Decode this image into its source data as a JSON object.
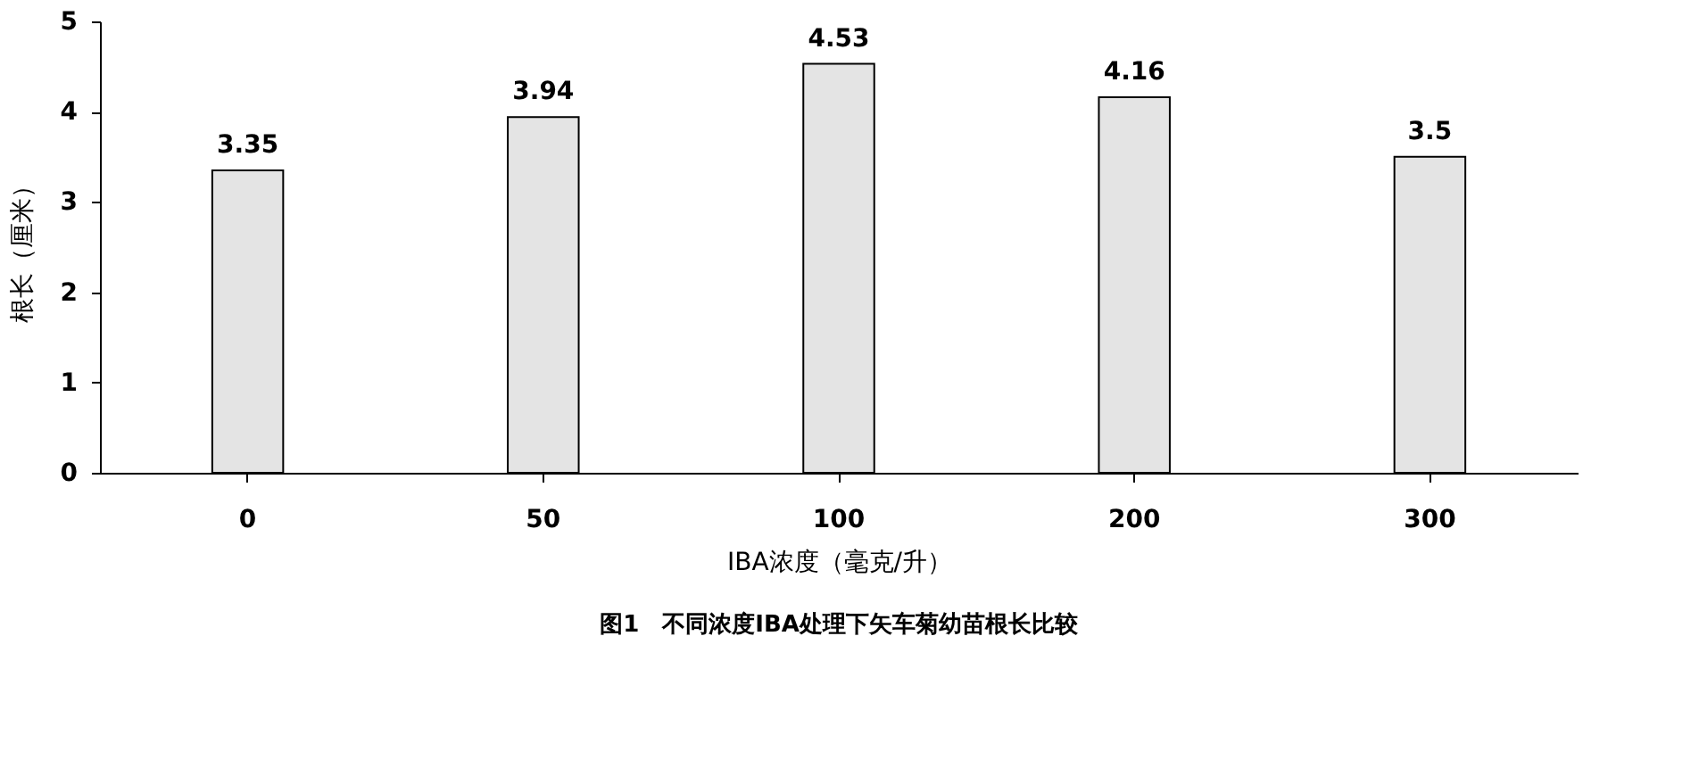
{
  "chart_data": {
    "type": "bar",
    "title": "图1　不同浓度IBA处理下矢车菊幼苗根长比较",
    "xlabel": "IBA浓度（毫克/升）",
    "ylabel": "根长（厘米）",
    "categories": [
      "0",
      "50",
      "100",
      "200",
      "300"
    ],
    "values": [
      3.35,
      3.94,
      4.53,
      4.16,
      3.5
    ],
    "color": "#e4e4e4",
    "ylim": [
      0,
      5
    ],
    "yticks": [
      0,
      1,
      2,
      3,
      4,
      5
    ],
    "grid": false,
    "data_labels": true
  }
}
